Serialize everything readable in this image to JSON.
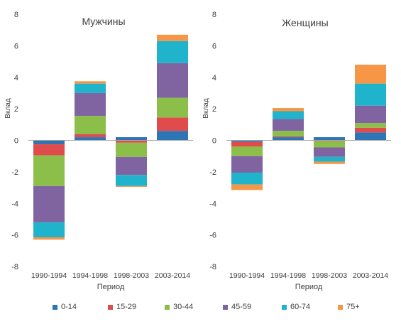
{
  "chart_data": [
    {
      "type": "bar",
      "stacked": true,
      "title": "Мужчины",
      "xlabel": "Период",
      "ylabel": "Вклад",
      "ylim": [
        -8,
        8
      ],
      "yticks": [
        -8,
        -6,
        -4,
        -2,
        0,
        2,
        4,
        6,
        8
      ],
      "grid": false,
      "categories": [
        "1990-1994",
        "1994-1998",
        "1998-2003",
        "2003-2014"
      ],
      "series": [
        {
          "name": "0-14",
          "values": [
            -0.25,
            0.2,
            0.2,
            0.6
          ]
        },
        {
          "name": "15-29",
          "values": [
            -0.7,
            0.2,
            -0.15,
            0.85
          ]
        },
        {
          "name": "30-44",
          "values": [
            -1.95,
            1.15,
            -0.9,
            1.25
          ]
        },
        {
          "name": "45-59",
          "values": [
            -2.3,
            1.45,
            -1.15,
            2.2
          ]
        },
        {
          "name": "60-74",
          "values": [
            -0.95,
            0.6,
            -0.7,
            1.4
          ]
        },
        {
          "name": "75+",
          "values": [
            -0.15,
            0.15,
            -0.05,
            0.4
          ]
        }
      ]
    },
    {
      "type": "bar",
      "stacked": true,
      "title": "Женщины",
      "xlabel": "Период",
      "ylabel": "Вклад",
      "ylim": [
        -8,
        8
      ],
      "yticks": [
        -8,
        -6,
        -4,
        -2,
        0,
        2,
        4,
        6,
        8
      ],
      "grid": false,
      "categories": [
        "1990-1994",
        "1994-1998",
        "1998-2003",
        "2003-2014"
      ],
      "series": [
        {
          "name": "0-14",
          "values": [
            -0.1,
            0.2,
            0.2,
            0.5
          ]
        },
        {
          "name": "15-29",
          "values": [
            -0.3,
            0.05,
            -0.05,
            0.3
          ]
        },
        {
          "name": "30-44",
          "values": [
            -0.6,
            0.35,
            -0.4,
            0.3
          ]
        },
        {
          "name": "45-59",
          "values": [
            -1.05,
            0.75,
            -0.6,
            1.1
          ]
        },
        {
          "name": "60-74",
          "values": [
            -0.75,
            0.5,
            -0.3,
            1.4
          ]
        },
        {
          "name": "75+",
          "values": [
            -0.35,
            0.2,
            -0.15,
            1.2
          ]
        }
      ]
    }
  ],
  "legend": {
    "position": "bottom",
    "items": [
      {
        "label": "0-14",
        "color": "#2E75B6"
      },
      {
        "label": "15-29",
        "color": "#E04B4B"
      },
      {
        "label": "30-44",
        "color": "#8CBF4A"
      },
      {
        "label": "45-59",
        "color": "#8064A2"
      },
      {
        "label": "60-74",
        "color": "#1FB3CC"
      },
      {
        "label": "75+",
        "color": "#F79646"
      }
    ]
  },
  "colors": {
    "axis": "#A6A6A6",
    "text": "#404040"
  }
}
